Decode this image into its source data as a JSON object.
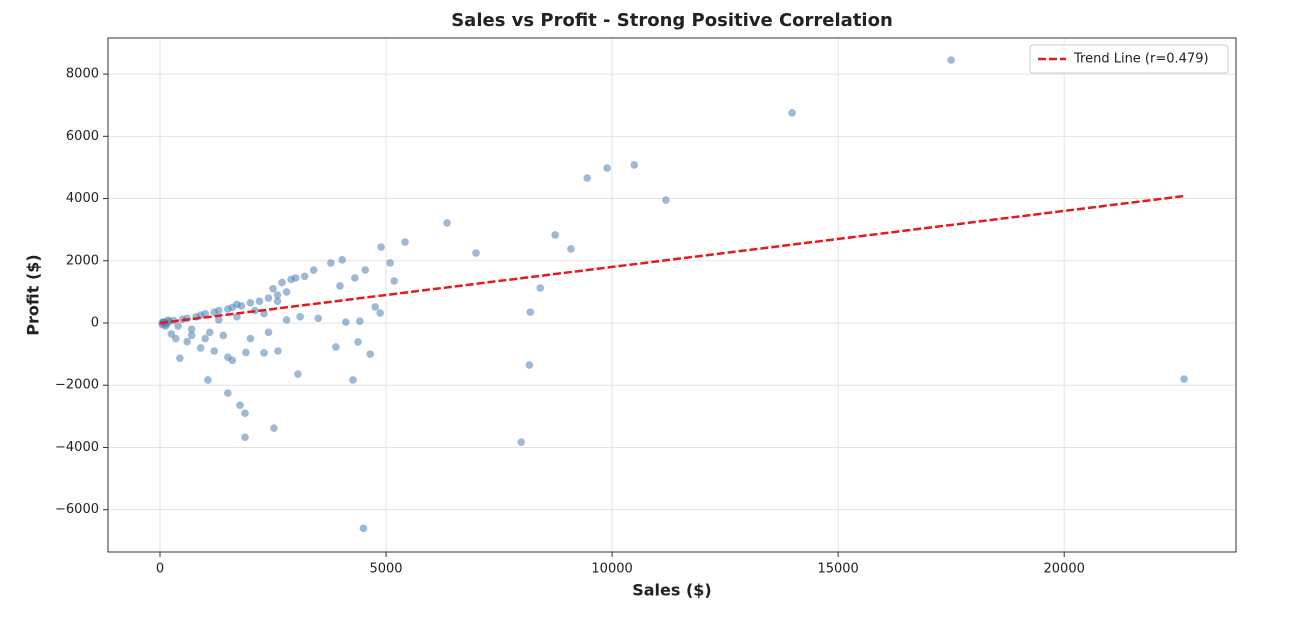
{
  "chart_data": {
    "type": "scatter",
    "title": "Sales vs Profit - Strong Positive Correlation",
    "xlabel": "Sales ($)",
    "ylabel": "Profit ($)",
    "xlim": [
      -1150,
      23800
    ],
    "ylim": [
      -7360,
      9160
    ],
    "xticks": [
      0,
      5000,
      10000,
      15000,
      20000
    ],
    "yticks": [
      {
        "value": -6000,
        "label": "−6000"
      },
      {
        "value": -4000,
        "label": "−4000"
      },
      {
        "value": -2000,
        "label": "−2000"
      },
      0,
      2000,
      4000,
      6000,
      8000
    ],
    "grid": true,
    "legend": "upper right",
    "series": [
      {
        "color": "#4a7fb5",
        "x": [
          17500,
          13980,
          10490,
          9890,
          9450,
          11190,
          6350,
          8740,
          9090,
          6990,
          5420,
          4890,
          5090,
          5180,
          8410,
          8190,
          8170,
          7990,
          22650,
          4500,
          1880,
          2520,
          1770,
          1880,
          1500,
          4270,
          3050,
          1060,
          4650,
          4380,
          3890,
          440,
          2300,
          2610,
          3980,
          4030,
          3780,
          4540,
          4310,
          4870,
          4760,
          4420,
          4110,
          50,
          100,
          150,
          200,
          300,
          400,
          500,
          600,
          700,
          800,
          900,
          1000,
          1100,
          1200,
          1300,
          1400,
          1500,
          1600,
          1700,
          1800,
          2000,
          2200,
          2400,
          2600,
          2800,
          3000,
          3200,
          3400,
          2700,
          2900,
          2500,
          250,
          350,
          600,
          900,
          1200,
          1500,
          1900,
          2400,
          2800,
          3100,
          3500,
          1000,
          700,
          1300,
          1700,
          2100,
          2300,
          50,
          80,
          120,
          180,
          2600,
          2000,
          1600
        ],
        "y": [
          8450,
          6750,
          5080,
          4980,
          4660,
          3950,
          3215,
          2830,
          2380,
          2250,
          2600,
          2440,
          1930,
          1350,
          1125,
          350,
          -1350,
          -3830,
          -1800,
          -6600,
          -3670,
          -3380,
          -2640,
          -2900,
          -2250,
          -1830,
          -1640,
          -1830,
          -1000,
          -610,
          -770,
          -1130,
          -960,
          -900,
          1190,
          2030,
          1930,
          1700,
          1450,
          320,
          515,
          60,
          30,
          10,
          20,
          -30,
          50,
          80,
          -100,
          120,
          150,
          -200,
          200,
          250,
          300,
          -300,
          350,
          400,
          -400,
          450,
          500,
          600,
          550,
          650,
          700,
          800,
          900,
          1000,
          1450,
          1500,
          1700,
          1300,
          1400,
          1100,
          -350,
          -500,
          -600,
          -800,
          -900,
          -1100,
          -950,
          -300,
          100,
          200,
          150,
          -500,
          -400,
          100,
          200,
          400,
          300,
          -50,
          40,
          -100,
          90,
          700,
          -500,
          -1200
        ]
      },
      {
        "name": "Trend Line (r=0.479)",
        "color": "#e41a1c",
        "x": [
          0,
          22650
        ],
        "y": [
          0,
          4080
        ]
      }
    ]
  }
}
